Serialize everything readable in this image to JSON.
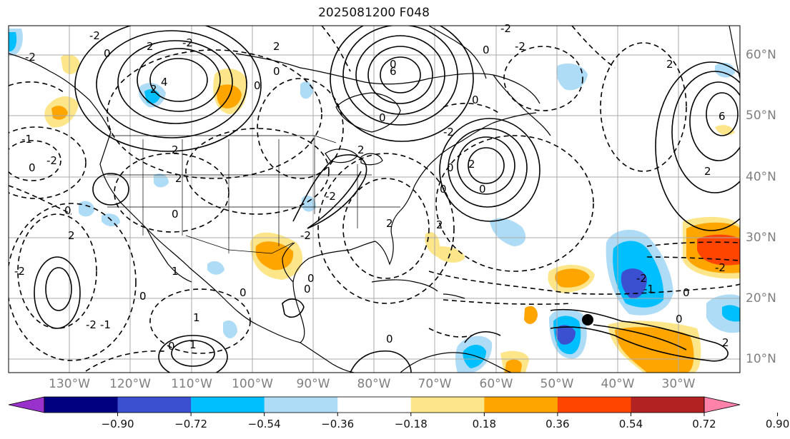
{
  "title": "2025081200 F048",
  "lat_labels": [
    "60°N",
    "50°N",
    "40°N",
    "30°N",
    "20°N",
    "10°N"
  ],
  "lon_labels": [
    "130°W",
    "120°W",
    "110°W",
    "100°W",
    "90°W",
    "80°W",
    "70°W",
    "60°W",
    "50°W",
    "40°W",
    "30°W"
  ],
  "colorbar": {
    "tick_labels": [
      "−0.90",
      "−0.72",
      "−0.54",
      "−0.36",
      "−0.18",
      "0.18",
      "0.36",
      "0.54",
      "0.72",
      "0.90"
    ],
    "colors": [
      "#9932cc",
      "#000080",
      "#3a50d0",
      "#00bfff",
      "#aedcf7",
      "#ffffff",
      "#fde68a",
      "#ffa500",
      "#ff4500",
      "#b22222",
      "#ff82ab"
    ]
  },
  "contour_labels": [
    "2",
    "-2",
    "-2",
    "0",
    "4",
    "2",
    "0",
    "0",
    "2",
    "-2",
    "6",
    "0",
    "2",
    "-2",
    "0",
    "2",
    "-2",
    "0",
    "0",
    "-2",
    "2",
    "-1",
    "0",
    "-2",
    "1",
    "-1",
    "0",
    "2",
    "0",
    "1",
    "0",
    "0",
    "-2",
    "0",
    "2",
    "2",
    "2",
    "0",
    "0",
    "2",
    "-2",
    "0",
    "0",
    "2",
    "6",
    "2",
    "0",
    "-2",
    "-1",
    "0",
    "0",
    "1",
    "0",
    "-2",
    "-2",
    "-2"
  ],
  "marker": "storm-center"
}
